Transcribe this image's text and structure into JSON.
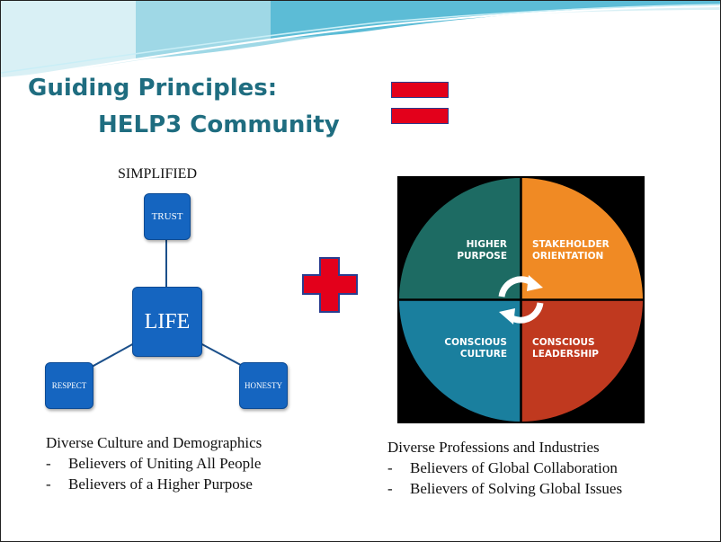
{
  "title": {
    "line1": "Guiding Principles:",
    "line2": "HELP3 Community"
  },
  "left_diagram": {
    "heading": "SIMPLIFIED",
    "center": "LIFE",
    "top": "TRUST",
    "bottom_left": "RESPECT",
    "bottom_right": "HONESTY"
  },
  "wheel": {
    "quadrants": [
      {
        "line1": "HIGHER",
        "line2": "PURPOSE",
        "color": "#1d6b63"
      },
      {
        "line1": "STAKEHOLDER",
        "line2": "ORIENTATION",
        "color": "#f08a24"
      },
      {
        "line1": "CONSCIOUS",
        "line2": "CULTURE",
        "color": "#1a7f9e"
      },
      {
        "line1": "CONSCIOUS",
        "line2": "LEADERSHIP",
        "color": "#c0391f"
      }
    ]
  },
  "left_caption": {
    "heading": "Diverse Culture and Demographics",
    "bullets": [
      "Believers of Uniting All People",
      "Believers of a Higher Purpose"
    ]
  },
  "right_caption": {
    "heading": "Diverse Professions and Industries",
    "bullets": [
      "Believers of Global Collaboration",
      "Believers of Solving Global Issues"
    ]
  },
  "colors": {
    "title": "#1f6d80",
    "node": "#1565c0",
    "symbol_red": "#e3001b",
    "symbol_border": "#2a3d8f"
  }
}
